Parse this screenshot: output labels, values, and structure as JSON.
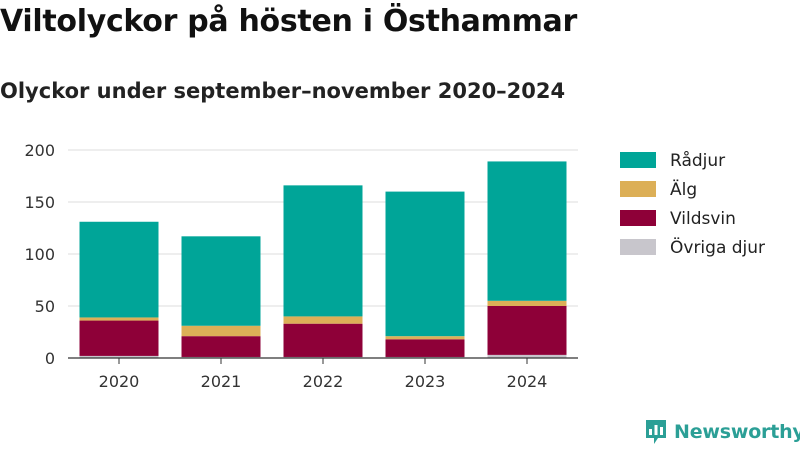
{
  "title": "Viltolyckor på hösten i Östhammar",
  "subtitle": "Olyckor under september–november 2020–2024",
  "brand": {
    "name": "Newsworthy",
    "logo_icon": "bar-chart-icon",
    "color": "#2b9f96"
  },
  "chart_data": {
    "type": "bar",
    "stacked": true,
    "categories": [
      "2020",
      "2021",
      "2022",
      "2023",
      "2024"
    ],
    "series": [
      {
        "name": "Övriga djur",
        "color": "#c8c6cc",
        "values": [
          2,
          1,
          1,
          1,
          3
        ]
      },
      {
        "name": "Vildsvin",
        "color": "#8e0038",
        "values": [
          34,
          20,
          32,
          17,
          47
        ]
      },
      {
        "name": "Älg",
        "color": "#dcaf57",
        "values": [
          3,
          10,
          7,
          3,
          5
        ]
      },
      {
        "name": "Rådjur",
        "color": "#00a598",
        "values": [
          92,
          86,
          126,
          139,
          134
        ]
      }
    ],
    "legend_order": [
      "Rådjur",
      "Älg",
      "Vildsvin",
      "Övriga djur"
    ],
    "ylim": [
      0,
      200
    ],
    "yticks": [
      "0",
      "50",
      "100",
      "150",
      "200"
    ],
    "xlabel": "",
    "ylabel": "",
    "grid": true,
    "legend_position": "right"
  }
}
